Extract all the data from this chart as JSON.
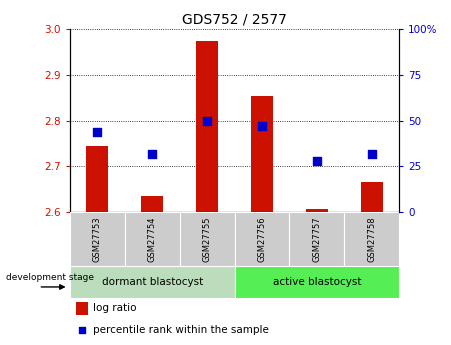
{
  "title": "GDS752 / 2577",
  "samples": [
    "GSM27753",
    "GSM27754",
    "GSM27755",
    "GSM27756",
    "GSM27757",
    "GSM27758"
  ],
  "log_ratio": [
    2.745,
    2.635,
    2.975,
    2.855,
    2.608,
    2.665
  ],
  "log_ratio_base": 2.6,
  "percentile_rank": [
    44,
    32,
    50,
    47,
    28,
    32
  ],
  "ylim_left": [
    2.6,
    3.0
  ],
  "ylim_right": [
    0,
    100
  ],
  "yticks_left": [
    2.6,
    2.7,
    2.8,
    2.9,
    3.0
  ],
  "yticks_right": [
    0,
    25,
    50,
    75,
    100
  ],
  "groups": [
    {
      "label": "dormant blastocyst",
      "indices": [
        0,
        1,
        2
      ],
      "color": "#bbddbb"
    },
    {
      "label": "active blastocyst",
      "indices": [
        3,
        4,
        5
      ],
      "color": "#55ee55"
    }
  ],
  "bar_color": "#cc1100",
  "dot_color": "#0000cc",
  "bar_width": 0.4,
  "dot_size": 30,
  "ylabel_left_color": "#cc1100",
  "ylabel_right_color": "#0000cc",
  "legend_bar_label": "log ratio",
  "legend_dot_label": "percentile rank within the sample",
  "dev_stage_label": "development stage",
  "sample_box_color": "#cccccc",
  "title_fontsize": 10
}
